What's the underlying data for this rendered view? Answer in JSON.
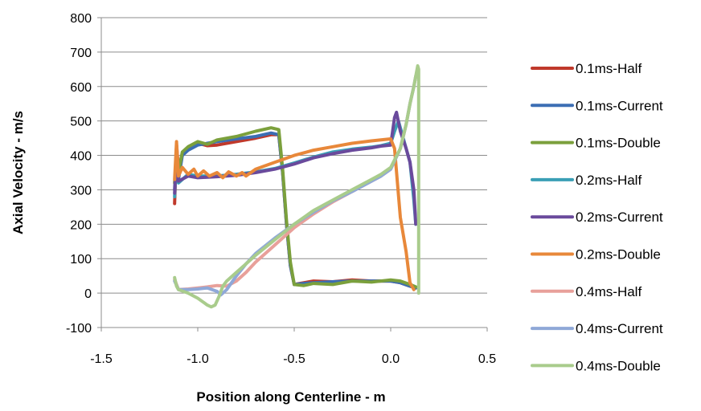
{
  "chart_data": {
    "type": "line",
    "title": "",
    "xlabel": "Position along Centerline - m",
    "ylabel": "Axial Velocity - m/s",
    "xlim": [
      -1.5,
      0.5
    ],
    "ylim": [
      -100,
      800
    ],
    "x_ticks": [
      -1.5,
      -1.0,
      -0.5,
      0.0,
      0.5
    ],
    "x_tick_labels": [
      "-1.5",
      "-1.0",
      "-0.5",
      "0.0",
      "0.5"
    ],
    "y_ticks": [
      -100,
      0,
      100,
      200,
      300,
      400,
      500,
      600,
      700,
      800
    ],
    "y_tick_labels": [
      "-100",
      "0",
      "100",
      "200",
      "300",
      "400",
      "500",
      "600",
      "700",
      "800"
    ],
    "grid": "horizontal",
    "legend_position": "right",
    "series": [
      {
        "name": "0.1ms-Half",
        "color": "#c0392b",
        "x": [
          -1.12,
          -1.11,
          -1.1,
          -1.08,
          -1.05,
          -1.0,
          -0.95,
          -0.9,
          -0.8,
          -0.7,
          -0.62,
          -0.58,
          -0.56,
          -0.54,
          -0.52,
          -0.5,
          -0.45,
          -0.4,
          -0.3,
          -0.2,
          -0.1,
          0.0,
          0.05,
          0.1,
          0.13
        ],
        "y": [
          260,
          430,
          360,
          405,
          420,
          435,
          428,
          430,
          440,
          450,
          460,
          460,
          350,
          200,
          80,
          25,
          30,
          35,
          33,
          38,
          35,
          35,
          30,
          20,
          15
        ]
      },
      {
        "name": "0.1ms-Current",
        "color": "#3c6eb4",
        "x": [
          -1.12,
          -1.11,
          -1.1,
          -1.08,
          -1.05,
          -1.0,
          -0.95,
          -0.9,
          -0.8,
          -0.7,
          -0.62,
          -0.58,
          -0.56,
          -0.54,
          -0.52,
          -0.5,
          -0.45,
          -0.4,
          -0.3,
          -0.2,
          -0.1,
          0.0,
          0.05,
          0.1,
          0.13
        ],
        "y": [
          300,
          420,
          330,
          400,
          415,
          430,
          435,
          440,
          448,
          455,
          465,
          460,
          350,
          200,
          80,
          25,
          28,
          30,
          33,
          35,
          35,
          35,
          30,
          20,
          15
        ]
      },
      {
        "name": "0.1ms-Double",
        "color": "#7ba03c",
        "x": [
          -1.12,
          -1.11,
          -1.1,
          -1.08,
          -1.05,
          -1.0,
          -0.95,
          -0.9,
          -0.8,
          -0.7,
          -0.62,
          -0.58,
          -0.56,
          -0.54,
          -0.52,
          -0.5,
          -0.45,
          -0.4,
          -0.3,
          -0.2,
          -0.1,
          0.0,
          0.05,
          0.1,
          0.13
        ],
        "y": [
          320,
          410,
          350,
          410,
          425,
          440,
          432,
          445,
          455,
          470,
          480,
          475,
          360,
          210,
          90,
          25,
          22,
          28,
          25,
          35,
          32,
          38,
          35,
          25,
          18
        ]
      },
      {
        "name": "0.2ms-Half",
        "color": "#3a9fb5",
        "x": [
          -1.12,
          -1.11,
          -1.1,
          -1.05,
          -1.0,
          -0.9,
          -0.8,
          -0.7,
          -0.6,
          -0.5,
          -0.4,
          -0.3,
          -0.2,
          -0.1,
          -0.05,
          0.0,
          0.02,
          0.04,
          0.06,
          0.1,
          0.12,
          0.13
        ],
        "y": [
          280,
          400,
          320,
          345,
          340,
          340,
          345,
          352,
          362,
          378,
          395,
          410,
          418,
          424,
          428,
          435,
          470,
          500,
          460,
          380,
          270,
          200
        ]
      },
      {
        "name": "0.2ms-Current",
        "color": "#6a4a9c",
        "x": [
          -1.12,
          -1.11,
          -1.1,
          -1.05,
          -1.0,
          -0.9,
          -0.8,
          -0.7,
          -0.6,
          -0.5,
          -0.4,
          -0.3,
          -0.2,
          -0.1,
          -0.05,
          0.0,
          0.02,
          0.03,
          0.05,
          0.08,
          0.1,
          0.12,
          0.13
        ],
        "y": [
          290,
          410,
          325,
          340,
          335,
          338,
          342,
          350,
          360,
          375,
          393,
          405,
          415,
          422,
          427,
          430,
          510,
          525,
          470,
          420,
          380,
          300,
          200
        ]
      },
      {
        "name": "0.2ms-Double",
        "color": "#e8883a",
        "x": [
          -1.12,
          -1.11,
          -1.1,
          -1.08,
          -1.05,
          -1.02,
          -1.0,
          -0.97,
          -0.94,
          -0.9,
          -0.87,
          -0.84,
          -0.8,
          -0.77,
          -0.75,
          -0.7,
          -0.6,
          -0.5,
          -0.4,
          -0.3,
          -0.2,
          -0.1,
          -0.05,
          0.0,
          0.02,
          0.05,
          0.08,
          0.1,
          0.12
        ],
        "y": [
          330,
          440,
          340,
          365,
          345,
          360,
          340,
          355,
          340,
          350,
          335,
          352,
          340,
          350,
          340,
          360,
          380,
          400,
          415,
          425,
          435,
          442,
          445,
          448,
          420,
          220,
          120,
          30,
          10
        ]
      },
      {
        "name": "0.4ms-Half",
        "color": "#e8a09a",
        "x": [
          -1.12,
          -1.1,
          -1.05,
          -1.0,
          -0.95,
          -0.9,
          -0.85,
          -0.8,
          -0.75,
          -0.7,
          -0.6,
          -0.5,
          -0.4,
          -0.3,
          -0.2,
          -0.1,
          -0.05,
          0.0,
          0.05,
          0.08,
          0.1,
          0.12,
          0.13,
          0.14
        ],
        "y": [
          40,
          10,
          12,
          15,
          18,
          22,
          20,
          35,
          60,
          90,
          140,
          190,
          230,
          265,
          295,
          325,
          340,
          360,
          420,
          490,
          550,
          600,
          630,
          640
        ]
      },
      {
        "name": "0.4ms-Current",
        "color": "#8fa8d8",
        "x": [
          -1.12,
          -1.1,
          -1.05,
          -1.0,
          -0.95,
          -0.9,
          -0.88,
          -0.85,
          -0.8,
          -0.75,
          -0.7,
          -0.6,
          -0.5,
          -0.4,
          -0.3,
          -0.2,
          -0.1,
          -0.05,
          0.0,
          0.05,
          0.08,
          0.1,
          0.12,
          0.13,
          0.14
        ],
        "y": [
          35,
          10,
          10,
          12,
          15,
          5,
          -5,
          10,
          50,
          85,
          115,
          160,
          200,
          235,
          268,
          295,
          325,
          340,
          360,
          420,
          490,
          550,
          600,
          630,
          645
        ]
      },
      {
        "name": "0.4ms-Double",
        "color": "#a9cc8c",
        "x": [
          -1.12,
          -1.11,
          -1.1,
          -1.05,
          -1.0,
          -0.95,
          -0.93,
          -0.91,
          -0.89,
          -0.87,
          -0.85,
          -0.8,
          -0.75,
          -0.7,
          -0.6,
          -0.5,
          -0.4,
          -0.3,
          -0.2,
          -0.1,
          -0.05,
          0.0,
          0.05,
          0.08,
          0.1,
          0.12,
          0.13,
          0.14,
          0.145,
          0.145
        ],
        "y": [
          45,
          20,
          10,
          0,
          -15,
          -35,
          -40,
          -35,
          -10,
          20,
          35,
          60,
          85,
          110,
          155,
          200,
          240,
          270,
          300,
          330,
          345,
          365,
          420,
          490,
          550,
          600,
          630,
          660,
          650,
          0
        ]
      }
    ]
  }
}
